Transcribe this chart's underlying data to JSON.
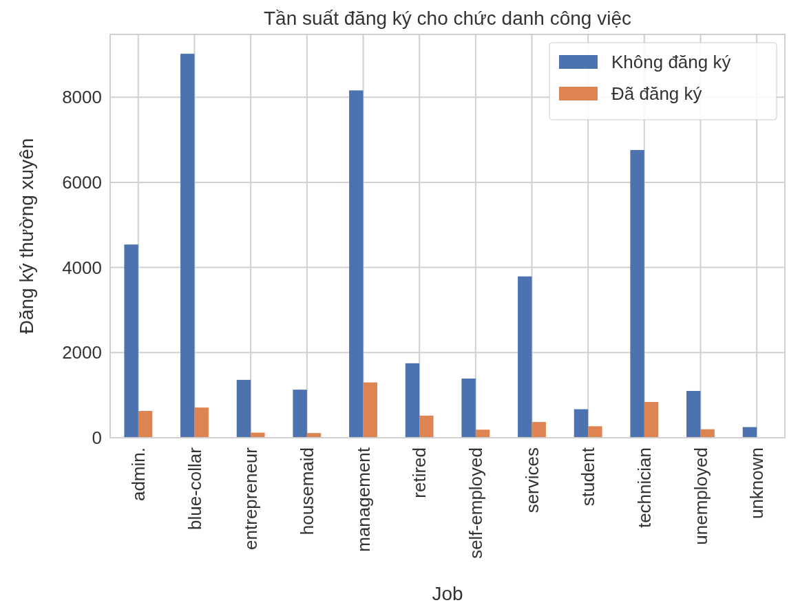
{
  "chart_data": {
    "type": "bar",
    "title": "Tần suất đăng ký cho chức danh công việc",
    "xlabel": "Job",
    "ylabel": "Đăng ký thường xuyên",
    "categories": [
      "admin.",
      "blue-collar",
      "entrepreneur",
      "housemaid",
      "management",
      "retired",
      "self-employed",
      "services",
      "student",
      "technician",
      "unemployed",
      "unknown"
    ],
    "series": [
      {
        "name": "Không đăng ký",
        "color": "#4c72b0",
        "values": [
          4540,
          9020,
          1360,
          1130,
          8160,
          1750,
          1390,
          3790,
          670,
          6760,
          1100,
          250
        ]
      },
      {
        "name": "Đã đăng ký",
        "color": "#dd8452",
        "values": [
          630,
          710,
          120,
          110,
          1300,
          520,
          190,
          370,
          270,
          840,
          200,
          null
        ]
      }
    ],
    "ylim": [
      0,
      9475
    ],
    "yticks": [
      0,
      2000,
      4000,
      6000,
      8000
    ],
    "grid": true,
    "legend": "top right"
  }
}
